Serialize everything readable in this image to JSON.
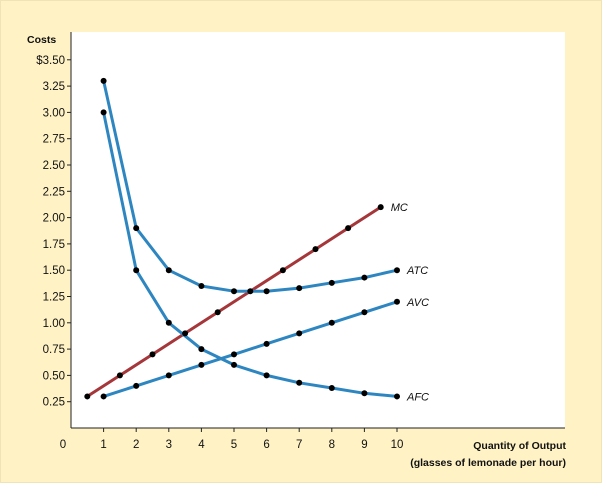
{
  "chart_data": {
    "type": "line",
    "ylabel": "Costs",
    "xlabel_line1": "Quantity of Output",
    "xlabel_line2": "(glasses of lemonade per hour)",
    "xlim": [
      0,
      10
    ],
    "ylim": [
      0,
      3.5
    ],
    "x_ticks": [
      "0",
      "1",
      "2",
      "3",
      "4",
      "5",
      "6",
      "7",
      "8",
      "9",
      "10"
    ],
    "y_ticks": [
      {
        "value": 3.5,
        "label": "$3.50"
      },
      {
        "value": 3.25,
        "label": "3.25"
      },
      {
        "value": 3.0,
        "label": "3.00"
      },
      {
        "value": 2.75,
        "label": "2.75"
      },
      {
        "value": 2.5,
        "label": "2.50"
      },
      {
        "value": 2.25,
        "label": "2.25"
      },
      {
        "value": 2.0,
        "label": "2.00"
      },
      {
        "value": 1.75,
        "label": "1.75"
      },
      {
        "value": 1.5,
        "label": "1.50"
      },
      {
        "value": 1.25,
        "label": "1.25"
      },
      {
        "value": 1.0,
        "label": "1.00"
      },
      {
        "value": 0.75,
        "label": "0.75"
      },
      {
        "value": 0.5,
        "label": "0.50"
      },
      {
        "value": 0.25,
        "label": "0.25"
      }
    ],
    "grid": false,
    "series": [
      {
        "name": "MC",
        "color": "#a5363a",
        "points": [
          [
            0.5,
            0.3
          ],
          [
            1.5,
            0.5
          ],
          [
            2.5,
            0.7
          ],
          [
            3.5,
            0.9
          ],
          [
            4.5,
            1.1
          ],
          [
            5.5,
            1.3
          ],
          [
            6.5,
            1.5
          ],
          [
            7.5,
            1.7
          ],
          [
            8.5,
            1.9
          ],
          [
            9.5,
            2.1
          ]
        ]
      },
      {
        "name": "ATC",
        "color": "#2e86c1",
        "points": [
          [
            1,
            3.3
          ],
          [
            2,
            1.9
          ],
          [
            3,
            1.5
          ],
          [
            4,
            1.35
          ],
          [
            5,
            1.3
          ],
          [
            6,
            1.3
          ],
          [
            7,
            1.33
          ],
          [
            8,
            1.38
          ],
          [
            9,
            1.43
          ],
          [
            10,
            1.5
          ]
        ]
      },
      {
        "name": "AVC",
        "color": "#2e86c1",
        "points": [
          [
            1,
            0.3
          ],
          [
            2,
            0.4
          ],
          [
            3,
            0.5
          ],
          [
            4,
            0.6
          ],
          [
            5,
            0.7
          ],
          [
            6,
            0.8
          ],
          [
            7,
            0.9
          ],
          [
            8,
            1.0
          ],
          [
            9,
            1.1
          ],
          [
            10,
            1.2
          ]
        ]
      },
      {
        "name": "AFC",
        "color": "#2e86c1",
        "points": [
          [
            1,
            3.0
          ],
          [
            2,
            1.5
          ],
          [
            3,
            1.0
          ],
          [
            4,
            0.75
          ],
          [
            5,
            0.6
          ],
          [
            6,
            0.5
          ],
          [
            7,
            0.43
          ],
          [
            8,
            0.38
          ],
          [
            9,
            0.33
          ],
          [
            10,
            0.3
          ]
        ]
      }
    ]
  }
}
